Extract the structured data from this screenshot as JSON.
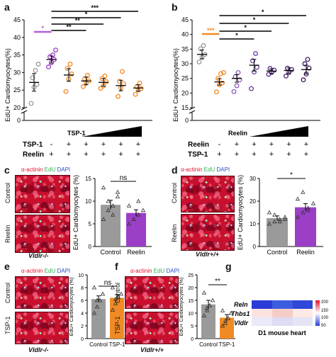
{
  "panel_letters": {
    "a": "a",
    "b": "b",
    "c": "c",
    "d": "d",
    "e": "e",
    "f": "f",
    "g": "g"
  },
  "legend": {
    "actinin": "α-actinin",
    "edu": "EdU",
    "dapi": "DAPI"
  },
  "colors": {
    "red": "#e4112d",
    "green": "#2bb24c",
    "blue": "#2b4ec9",
    "purple": "#9b3fc7",
    "orange": "#f08a24",
    "gray": "#9a9a9a"
  },
  "labels": {
    "y_edu_pct": "EdU+ Cardiomyocytes(%)",
    "y_edu_pct2": "EdU+ Cardiomyocytes (%)",
    "control": "Control",
    "reelin": "Reelin",
    "tsp1": "TSP-1",
    "tsp1_row": "TSP-1",
    "reelin_row": "Reelin",
    "vldlr_ko": "Vldlr-/-",
    "vldlr_wt": "Vldlr+/+",
    "ns": "ns",
    "star": "*",
    "dstar": "**",
    "tstar": "***",
    "plus": "+",
    "minus": "-",
    "heart": "D1 mouse heart"
  },
  "chart_data": [
    {
      "panel": "a",
      "type": "scatter",
      "ylabel": "EdU+ Cardiomyocytes(%)",
      "yticks": [
        0,
        20,
        25,
        30,
        35,
        40,
        45
      ],
      "groups": [
        {
          "color": "#9a9a9a",
          "mean": 27.2,
          "sem": 2.5,
          "points": [
            21.2,
            25.8,
            26.6,
            28.5,
            30.6,
            32.4
          ]
        },
        {
          "color": "#9b3fc7",
          "mean": 33.7,
          "sem": 1.0,
          "points": [
            31.6,
            32.8,
            33.7,
            34.5,
            35.0,
            36.4
          ]
        },
        {
          "color": "#f08a24",
          "mean": 29.3,
          "sem": 1.8,
          "points": [
            24.6,
            28.2,
            29.6,
            31.2,
            32.4
          ]
        },
        {
          "color": "#f08a24",
          "mean": 27.6,
          "sem": 1.1,
          "points": [
            26.0,
            27.2,
            27.6,
            28.2,
            29.2
          ]
        },
        {
          "color": "#f08a24",
          "mean": 27.2,
          "sem": 1.1,
          "points": [
            25.5,
            26.2,
            27.4,
            28.3,
            29.0
          ]
        },
        {
          "color": "#f08a24",
          "mean": 26.3,
          "sem": 1.5,
          "points": [
            23.2,
            25.6,
            26.8,
            27.5,
            30.3
          ]
        },
        {
          "color": "#f08a24",
          "mean": 25.6,
          "sem": 0.9,
          "points": [
            23.8,
            25.0,
            25.4,
            26.0,
            27.0
          ]
        }
      ],
      "rows": {
        "tsp1": [
          "-",
          "-",
          "+",
          "+",
          "+",
          "+",
          "+"
        ],
        "reelin": [
          "-",
          "+",
          "+",
          "+",
          "+",
          "+",
          "+"
        ]
      }
    },
    {
      "panel": "b",
      "type": "scatter",
      "ylabel": "EdU+ Cardiomyocytes(%)",
      "yticks": [
        0,
        15,
        20,
        25,
        30,
        35,
        40,
        45
      ],
      "groups": [
        {
          "color": "#9a9a9a",
          "mean": 33.2,
          "sem": 1.5,
          "points": [
            30.6,
            32.2,
            33.2,
            35.1,
            36.2
          ]
        },
        {
          "color": "#f08a24",
          "mean": 23.8,
          "sem": 1.1,
          "points": [
            20.4,
            22.8,
            23.4,
            25.0,
            26.6,
            27.0
          ]
        },
        {
          "color": "#8c5cb8",
          "mean": 25.0,
          "sem": 1.3,
          "points": [
            20.5,
            22.5,
            24.5,
            25.6,
            27.0
          ]
        },
        {
          "color": "#6b3fa0",
          "mean": 29.5,
          "sem": 2.0,
          "points": [
            21.5,
            27.2,
            28.8,
            31.0,
            33.5
          ]
        },
        {
          "color": "#5a2d8a",
          "mean": 27.5,
          "sem": 0.8,
          "points": [
            26.4,
            27.0,
            27.8,
            28.4
          ]
        },
        {
          "color": "#4a1f75",
          "mean": 27.7,
          "sem": 0.9,
          "points": [
            25.8,
            27.0,
            28.0,
            28.5
          ]
        },
        {
          "color": "#3b165f",
          "mean": 28.0,
          "sem": 1.5,
          "points": [
            24.5,
            26.5,
            28.5,
            30.0,
            31.5
          ]
        }
      ],
      "rows": {
        "reelin": [
          "-",
          "-",
          "+",
          "+",
          "+",
          "+",
          "+"
        ],
        "tsp1": [
          "-",
          "+",
          "+",
          "+",
          "+",
          "+",
          "+"
        ]
      }
    },
    {
      "panel": "c",
      "type": "bar",
      "categories": [
        "Control",
        "Reelin"
      ],
      "values": [
        9.2,
        7.4
      ],
      "ylim": [
        0,
        15
      ],
      "yticks": [
        0,
        5,
        10,
        15
      ]
    },
    {
      "panel": "d",
      "type": "bar",
      "categories": [
        "Control",
        "Reelin"
      ],
      "values": [
        12.5,
        17.3
      ],
      "ylim": [
        0,
        30
      ],
      "yticks": [
        0,
        10,
        20,
        30
      ]
    },
    {
      "panel": "e",
      "type": "bar",
      "categories": [
        "Control",
        "TSP-1"
      ],
      "values": [
        6.2,
        6.4
      ],
      "ylim": [
        0,
        10
      ],
      "yticks": [
        0,
        2,
        4,
        6,
        8,
        10
      ]
    },
    {
      "panel": "f",
      "type": "bar",
      "categories": [
        "Control",
        "TSP-1"
      ],
      "values": [
        13.4,
        8.2
      ],
      "ylim": [
        0,
        25
      ],
      "yticks": [
        0,
        5,
        10,
        15,
        20,
        25
      ]
    },
    {
      "panel": "g",
      "type": "heatmap",
      "rows": [
        "Reln",
        "Thbs1",
        "Vldlr"
      ],
      "scale": [
        50,
        100,
        150,
        200
      ],
      "xlabel": "D1 mouse heart"
    }
  ]
}
